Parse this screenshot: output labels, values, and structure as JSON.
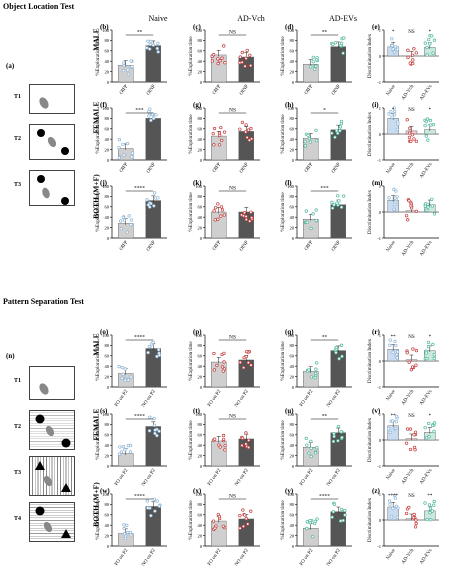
{
  "sections": {
    "top": "Object Location Test",
    "bottom": "Pattern Separation Test"
  },
  "schematics": {
    "top": {
      "label": "(a)",
      "trials": [
        "T1",
        "T2",
        "T3"
      ]
    },
    "bottom": {
      "label": "(n)",
      "trials": [
        "T1",
        "T2",
        "T3",
        "T4"
      ]
    }
  },
  "columns": [
    "Naive",
    "AD-Vch",
    "AD-EVs"
  ],
  "rows": [
    "MALE",
    "FEMALE",
    "BOTH (M+F)",
    "MALE",
    "FEMALE",
    "BOTH (M+F)"
  ],
  "ylabels": {
    "exploration": "%Exploration time",
    "di": "Discrimination Index"
  },
  "colors": {
    "naive": "#8fb6d9",
    "vch": "#c83a3a",
    "evs": "#4fb89e",
    "fam_bar": "#cfcfcf",
    "nov_bar": "#555555",
    "vch_bar": "#efc9c9",
    "evs_bar": "#c9e8de",
    "naive_bar": "#c9dbee"
  },
  "chart_data": [
    {
      "id": "(b)",
      "type": "bar",
      "group": "naive",
      "categories": [
        "OlFP",
        "OlNP"
      ],
      "values": [
        32,
        70
      ],
      "ylim": [
        0,
        100
      ],
      "yticks": [
        0,
        20,
        40,
        60,
        80,
        100
      ],
      "sig": "**"
    },
    {
      "id": "(c)",
      "type": "bar",
      "group": "vch",
      "categories": [
        "OlFP",
        "OlNP"
      ],
      "values": [
        52,
        48
      ],
      "ylim": [
        0,
        100
      ],
      "yticks": [
        0,
        20,
        40,
        60,
        80,
        100
      ],
      "sig": "NS"
    },
    {
      "id": "(d)",
      "type": "bar",
      "group": "evs",
      "categories": [
        "OlFP",
        "OlNP"
      ],
      "values": [
        34,
        68
      ],
      "ylim": [
        0,
        100
      ],
      "yticks": [
        0,
        20,
        40,
        60,
        80,
        100
      ],
      "sig": "**"
    },
    {
      "id": "(e)",
      "type": "bar",
      "group": "di",
      "categories": [
        "Naive",
        "AD-Vch",
        "AD-EVs"
      ],
      "values": [
        0.35,
        0.0,
        0.33
      ],
      "ylim": [
        -1,
        1
      ],
      "yticks": [
        -1,
        0,
        1
      ],
      "sig": [
        "*",
        "NS",
        "*"
      ]
    },
    {
      "id": "(f)",
      "type": "bar",
      "group": "naive",
      "categories": [
        "OlFP",
        "OlNP"
      ],
      "values": [
        22,
        80
      ],
      "ylim": [
        0,
        100
      ],
      "yticks": [
        0,
        20,
        40,
        60,
        80,
        100
      ],
      "sig": "***"
    },
    {
      "id": "(g)",
      "type": "bar",
      "group": "vch",
      "categories": [
        "OlFP",
        "OlNP"
      ],
      "values": [
        46,
        55
      ],
      "ylim": [
        0,
        100
      ],
      "yticks": [
        0,
        20,
        40,
        60,
        80,
        100
      ],
      "sig": "NS"
    },
    {
      "id": "(h)",
      "type": "bar",
      "group": "evs",
      "categories": [
        "OlFP",
        "OlNP"
      ],
      "values": [
        42,
        58
      ],
      "ylim": [
        0,
        100
      ],
      "yticks": [
        0,
        20,
        40,
        60,
        80,
        100
      ],
      "sig": "*"
    },
    {
      "id": "(i)",
      "type": "bar",
      "group": "di",
      "categories": [
        "Naive",
        "AD-Vch",
        "AD-EVs"
      ],
      "values": [
        0.6,
        0.12,
        0.17
      ],
      "ylim": [
        -1,
        1
      ],
      "yticks": [
        -1,
        0,
        1
      ],
      "sig": [
        "*",
        "NS",
        "*"
      ]
    },
    {
      "id": "(j)",
      "type": "bar",
      "group": "naive",
      "categories": [
        "OlFP",
        "OlNP"
      ],
      "values": [
        28,
        72
      ],
      "ylim": [
        0,
        100
      ],
      "yticks": [
        0,
        20,
        40,
        60,
        80,
        100
      ],
      "sig": "****"
    },
    {
      "id": "(k)",
      "type": "bar",
      "group": "vch",
      "categories": [
        "OlFP",
        "OlNP"
      ],
      "values": [
        50,
        50
      ],
      "ylim": [
        0,
        100
      ],
      "yticks": [
        0,
        20,
        40,
        60,
        80,
        100
      ],
      "sig": "NS"
    },
    {
      "id": "(l)",
      "type": "bar",
      "group": "evs",
      "categories": [
        "OlFP",
        "OlNP"
      ],
      "values": [
        36,
        64
      ],
      "ylim": [
        0,
        100
      ],
      "yticks": [
        0,
        20,
        40,
        60,
        80,
        100
      ],
      "sig": "***"
    },
    {
      "id": "(m)",
      "type": "bar",
      "group": "di",
      "categories": [
        "Naive",
        "AD-Vch",
        "AD-EVs"
      ],
      "values": [
        0.45,
        0.05,
        0.28
      ],
      "ylim": [
        -1,
        1
      ],
      "yticks": [
        -1,
        0,
        1
      ],
      "sig": [
        "",
        "",
        ""
      ]
    },
    {
      "id": "(o)",
      "type": "bar",
      "group": "naive",
      "categories": [
        "FO on P2",
        "NO on P2"
      ],
      "values": [
        26,
        74
      ],
      "ylim": [
        0,
        100
      ],
      "yticks": [
        0,
        20,
        40,
        60,
        80,
        100
      ],
      "sig": "****"
    },
    {
      "id": "(p)",
      "type": "bar",
      "group": "vch",
      "categories": [
        "FO on P2",
        "NO on P2"
      ],
      "values": [
        48,
        52
      ],
      "ylim": [
        0,
        100
      ],
      "yticks": [
        0,
        20,
        40,
        60,
        80,
        100
      ],
      "sig": "NS"
    },
    {
      "id": "(q)",
      "type": "bar",
      "group": "evs",
      "categories": [
        "FO on P2",
        "NO on P2"
      ],
      "values": [
        30,
        70
      ],
      "ylim": [
        0,
        100
      ],
      "yticks": [
        0,
        20,
        40,
        60,
        80,
        100
      ],
      "sig": "**"
    },
    {
      "id": "(r)",
      "type": "bar",
      "group": "di",
      "categories": [
        "Naive",
        "AD-Vch",
        "AD-EVs"
      ],
      "values": [
        0.45,
        0.05,
        0.4
      ],
      "ylim": [
        -1,
        1
      ],
      "yticks": [
        -1,
        0,
        1
      ],
      "sig": [
        "**",
        "NS",
        "*"
      ]
    },
    {
      "id": "(s)",
      "type": "bar",
      "group": "naive",
      "categories": [
        "FO on P2",
        "NO on P2"
      ],
      "values": [
        24,
        76
      ],
      "ylim": [
        0,
        100
      ],
      "yticks": [
        0,
        20,
        40,
        60,
        80,
        100
      ],
      "sig": "****"
    },
    {
      "id": "(t)",
      "type": "bar",
      "group": "vch",
      "categories": [
        "FO on P2",
        "NO on P2"
      ],
      "values": [
        48,
        52
      ],
      "ylim": [
        0,
        100
      ],
      "yticks": [
        0,
        20,
        40,
        60,
        80,
        100
      ],
      "sig": "NS"
    },
    {
      "id": "(u)",
      "type": "bar",
      "group": "evs",
      "categories": [
        "FO on P2",
        "NO on P2"
      ],
      "values": [
        36,
        64
      ],
      "ylim": [
        0,
        100
      ],
      "yticks": [
        0,
        20,
        40,
        60,
        80,
        100
      ],
      "sig": "**"
    },
    {
      "id": "(v)",
      "type": "bar",
      "group": "di",
      "categories": [
        "Naive",
        "AD-Vch",
        "AD-EVs"
      ],
      "values": [
        0.55,
        0.05,
        0.3
      ],
      "ylim": [
        -1,
        1
      ],
      "yticks": [
        -1,
        0,
        1
      ],
      "sig": [
        "**",
        "NS",
        "*"
      ]
    },
    {
      "id": "(w)",
      "type": "bar",
      "group": "naive",
      "categories": [
        "FO on P2",
        "NO on P2"
      ],
      "values": [
        24,
        76
      ],
      "ylim": [
        0,
        100
      ],
      "yticks": [
        0,
        20,
        40,
        60,
        80,
        100
      ],
      "sig": "****"
    },
    {
      "id": "(x)",
      "type": "bar",
      "group": "vch",
      "categories": [
        "FO on P2",
        "NO on P2"
      ],
      "values": [
        48,
        52
      ],
      "ylim": [
        0,
        100
      ],
      "yticks": [
        0,
        20,
        40,
        60,
        80,
        100
      ],
      "sig": "NS"
    },
    {
      "id": "(y)",
      "type": "bar",
      "group": "evs",
      "categories": [
        "FO on P2",
        "NO on P2"
      ],
      "values": [
        34,
        66
      ],
      "ylim": [
        0,
        100
      ],
      "yticks": [
        0,
        20,
        40,
        60,
        80,
        100
      ],
      "sig": "****"
    },
    {
      "id": "(z)",
      "type": "bar",
      "group": "di",
      "categories": [
        "Naive",
        "AD-Vch",
        "AD-EVs"
      ],
      "values": [
        0.5,
        0.05,
        0.35
      ],
      "ylim": [
        -1,
        1
      ],
      "yticks": [
        -1,
        0,
        1
      ],
      "sig": [
        "****",
        "NS",
        "**"
      ]
    }
  ]
}
